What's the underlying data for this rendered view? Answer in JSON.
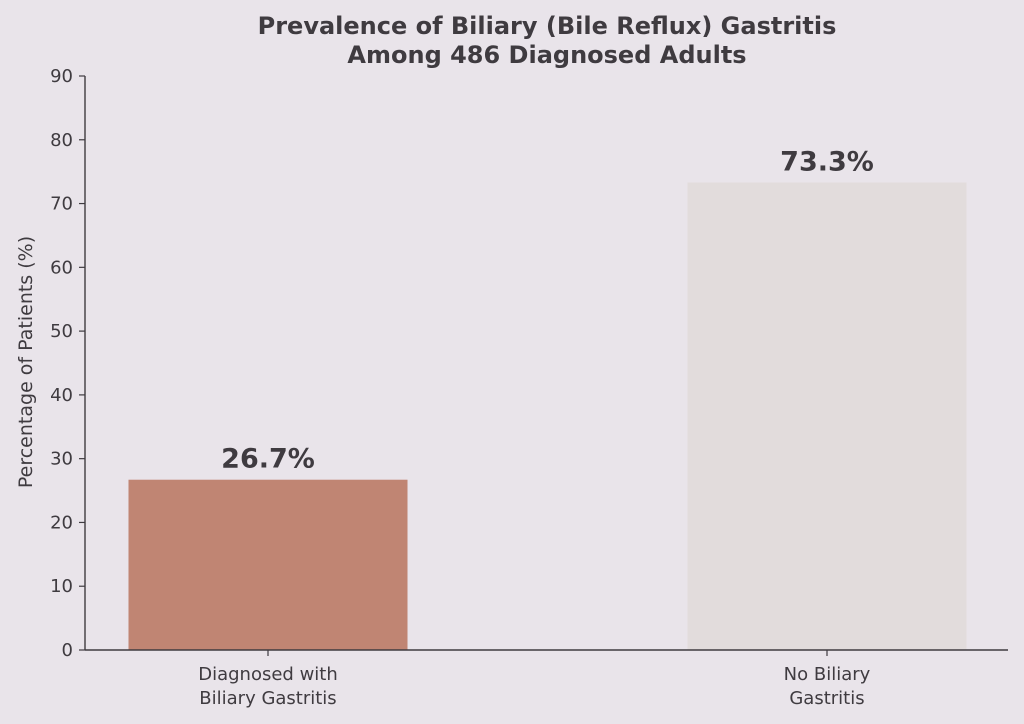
{
  "chart_data": {
    "type": "bar",
    "title_lines": [
      "Prevalence of Biliary (Bile Reflux) Gastritis",
      "Among 486 Diagnosed Adults"
    ],
    "xlabel": "",
    "ylabel": "Percentage of Patients (%)",
    "ylim": [
      0,
      90
    ],
    "yticks": [
      0,
      10,
      20,
      30,
      40,
      50,
      60,
      70,
      80,
      90
    ],
    "categories": [
      [
        "Diagnosed with",
        "Biliary Gastritis"
      ],
      [
        "No Biliary",
        "Gastritis"
      ]
    ],
    "values": [
      26.7,
      73.3
    ],
    "value_labels": [
      "26.7%",
      "73.3%"
    ],
    "bar_colors": [
      "#c08573",
      "#e2dcdc"
    ],
    "grid": false,
    "legend": "none"
  },
  "colors": {
    "background": "#e9e4ea",
    "text": "#3f3b40",
    "axis": "#3f3b40"
  }
}
